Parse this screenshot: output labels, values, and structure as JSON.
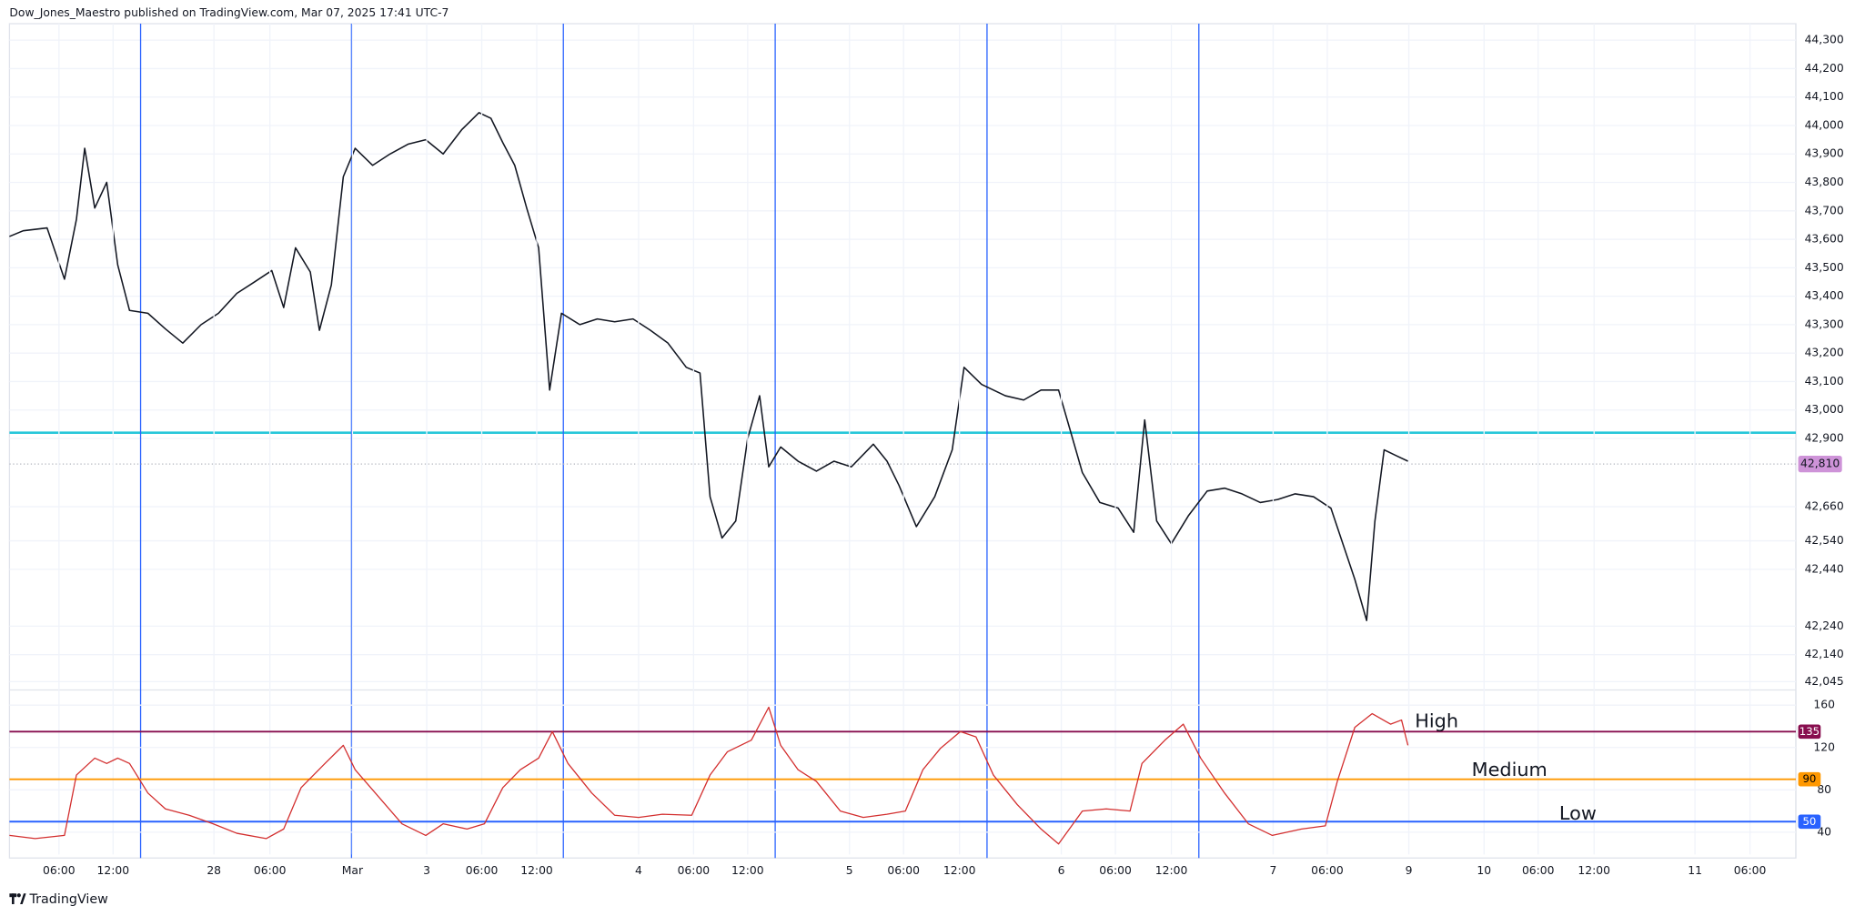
{
  "header": "Dow_Jones_Maestro published on TradingView.com, Mar 07, 2025 17:41 UTC-7",
  "footer": "TradingView",
  "chart_data": [
    {
      "type": "line",
      "x": [
        -22.3,
        -20.8,
        -18.2,
        -16.3,
        -15.0,
        -14.1,
        -13.0,
        -11.7,
        -10.5,
        -9.2,
        -7.2,
        -5.3,
        -3.4,
        -1.4,
        0.5,
        2.5,
        4.4,
        6.3,
        7.6,
        8.9,
        10.5,
        11.5,
        12.8,
        14.1,
        15.4,
        17.3,
        19.2,
        21.2,
        23.1,
        25.0,
        27.0,
        28.9,
        30.2,
        31.5,
        32.8,
        34.1,
        35.4,
        36.6,
        37.9,
        39.9,
        41.8,
        43.7,
        45.7,
        47.6,
        49.5,
        51.5,
        53.0,
        54.1,
        55.4,
        56.9,
        58.2,
        59.5,
        60.5,
        61.8,
        63.7,
        65.7,
        67.6,
        69.5,
        71.9,
        73.4,
        74.7,
        76.6,
        78.6,
        80.5,
        81.8,
        83.7,
        86.3,
        88.3,
        90.2,
        92.1,
        93.4,
        94.7,
        96.6,
        98.6,
        100.3,
        101.5,
        102.8,
        104.4,
        106.3,
        108.3,
        110.2,
        112.1,
        114.1,
        116.0,
        117.9,
        119.9,
        121.8,
        123.1,
        124.4,
        125.7,
        126.6,
        127.6,
        128.9,
        130.2
      ],
      "values": [
        43610,
        43630,
        43640,
        43460,
        43670,
        43920,
        43710,
        43800,
        43510,
        43350,
        43340,
        43285,
        43235,
        43300,
        43340,
        43410,
        43450,
        43490,
        43360,
        43570,
        43485,
        43280,
        43440,
        43820,
        43920,
        43860,
        43900,
        43935,
        43950,
        43900,
        43985,
        44045,
        44025,
        43940,
        43860,
        43710,
        43570,
        43070,
        43340,
        43300,
        43320,
        43310,
        43320,
        43280,
        43235,
        43150,
        43130,
        42695,
        42550,
        42610,
        42900,
        43050,
        42800,
        42870,
        42820,
        42785,
        42820,
        42800,
        42880,
        42820,
        42735,
        42590,
        42695,
        42860,
        43150,
        43090,
        43050,
        43035,
        43070,
        43070,
        42925,
        42780,
        42675,
        42655,
        42570,
        42965,
        42610,
        42530,
        42630,
        42715,
        42725,
        42705,
        42675,
        42685,
        42705,
        42695,
        42655,
        42530,
        42405,
        42260,
        42610,
        42860,
        42840,
        42820
      ],
      "color": "#131722",
      "xlim": [
        -22.3,
        172.5
      ],
      "ylim": [
        42020,
        44358
      ],
      "yticks": [
        {
          "value": 44300,
          "label": "44,300"
        },
        {
          "value": 44200,
          "label": "44,200"
        },
        {
          "value": 44100,
          "label": "44,100"
        },
        {
          "value": 44000,
          "label": "44,000"
        },
        {
          "value": 43900,
          "label": "43,900"
        },
        {
          "value": 43800,
          "label": "43,800"
        },
        {
          "value": 43700,
          "label": "43,700"
        },
        {
          "value": 43600,
          "label": "43,600"
        },
        {
          "value": 43500,
          "label": "43,500"
        },
        {
          "value": 43400,
          "label": "43,400"
        },
        {
          "value": 43300,
          "label": "43,300"
        },
        {
          "value": 43200,
          "label": "43,200"
        },
        {
          "value": 43100,
          "label": "43,100"
        },
        {
          "value": 43000,
          "label": "43,000"
        },
        {
          "value": 42900,
          "label": "42,900"
        },
        {
          "value": 42660,
          "label": "42,660"
        },
        {
          "value": 42540,
          "label": "42,540"
        },
        {
          "value": 42440,
          "label": "42,440"
        },
        {
          "value": 42240,
          "label": "42,240"
        },
        {
          "value": 42140,
          "label": "42,140"
        },
        {
          "value": 42045,
          "label": "42,045"
        }
      ],
      "grid": true,
      "hlines": [
        {
          "value": 42920,
          "color": "#26c6da"
        }
      ],
      "last_price": {
        "value": 42810,
        "label": "42,810",
        "color": "#ce93d8"
      },
      "vlines": {
        "values": [
          -8.0,
          15.0,
          38.1,
          61.2,
          84.3,
          107.4
        ],
        "color": "#2962ff"
      }
    },
    {
      "type": "line",
      "x": [
        -22.3,
        -19.5,
        -16.3,
        -15.0,
        -13.0,
        -11.7,
        -10.5,
        -9.2,
        -7.2,
        -5.3,
        -2.7,
        -0.1,
        2.5,
        5.7,
        7.6,
        9.5,
        12.1,
        14.1,
        15.4,
        17.9,
        20.5,
        23.1,
        25.0,
        27.6,
        29.5,
        31.5,
        33.4,
        35.4,
        36.9,
        38.6,
        41.2,
        43.7,
        46.3,
        48.9,
        52.1,
        54.1,
        56.0,
        58.6,
        60.5,
        61.8,
        63.7,
        65.7,
        68.3,
        70.8,
        73.4,
        75.4,
        77.3,
        79.2,
        81.4,
        83.1,
        85.0,
        87.6,
        90.2,
        92.1,
        94.7,
        97.3,
        99.9,
        101.2,
        103.7,
        105.7,
        107.6,
        110.2,
        112.8,
        115.4,
        118.6,
        121.2,
        122.5,
        124.4,
        126.3,
        128.3,
        129.5,
        130.2
      ],
      "values": [
        37,
        34,
        37,
        94,
        110,
        105,
        110,
        105,
        77,
        62,
        56,
        48,
        39,
        34,
        43,
        82,
        105,
        122,
        99,
        74,
        48,
        37,
        48,
        43,
        48,
        82,
        99,
        110,
        135,
        105,
        77,
        56,
        54,
        57,
        56,
        94,
        116,
        127,
        158,
        122,
        99,
        88,
        60,
        54,
        57,
        60,
        99,
        119,
        135,
        130,
        94,
        66,
        43,
        29,
        60,
        62,
        60,
        105,
        127,
        142,
        110,
        77,
        48,
        37,
        43,
        46,
        88,
        139,
        152,
        142,
        146,
        122
      ],
      "color": "#d32f2f",
      "xlim": [
        -22.3,
        172.5
      ],
      "ylim": [
        19,
        171
      ],
      "yticks": [
        40,
        80,
        120,
        160
      ],
      "grid": true,
      "levels": [
        {
          "value": 135,
          "label": "High",
          "color": "#880e4f"
        },
        {
          "value": 90,
          "label": "Medium",
          "color": "#ff9800"
        },
        {
          "value": 50,
          "label": "Low",
          "color": "#2962ff"
        }
      ],
      "xticks": [
        {
          "value": -16.9,
          "label": "06:00"
        },
        {
          "value": -11.0,
          "label": "12:00"
        },
        {
          "value": 0,
          "label": "28"
        },
        {
          "value": 6.1,
          "label": "06:00"
        },
        {
          "value": 15.1,
          "label": "Mar"
        },
        {
          "value": 23.2,
          "label": "3"
        },
        {
          "value": 29.2,
          "label": "06:00"
        },
        {
          "value": 35.2,
          "label": "12:00"
        },
        {
          "value": 46.3,
          "label": "4"
        },
        {
          "value": 52.3,
          "label": "06:00"
        },
        {
          "value": 58.2,
          "label": "12:00"
        },
        {
          "value": 69.3,
          "label": "5"
        },
        {
          "value": 75.2,
          "label": "06:00"
        },
        {
          "value": 81.3,
          "label": "12:00"
        },
        {
          "value": 92.4,
          "label": "6"
        },
        {
          "value": 98.3,
          "label": "06:00"
        },
        {
          "value": 104.4,
          "label": "12:00"
        },
        {
          "value": 115.5,
          "label": "7"
        },
        {
          "value": 121.4,
          "label": "06:00"
        },
        {
          "value": 130.3,
          "label": "9"
        },
        {
          "value": 138.5,
          "label": "10"
        },
        {
          "value": 144.4,
          "label": "06:00"
        },
        {
          "value": 150.5,
          "label": "12:00"
        },
        {
          "value": 161.5,
          "label": "11"
        },
        {
          "value": 167.5,
          "label": "06:00"
        }
      ]
    }
  ]
}
